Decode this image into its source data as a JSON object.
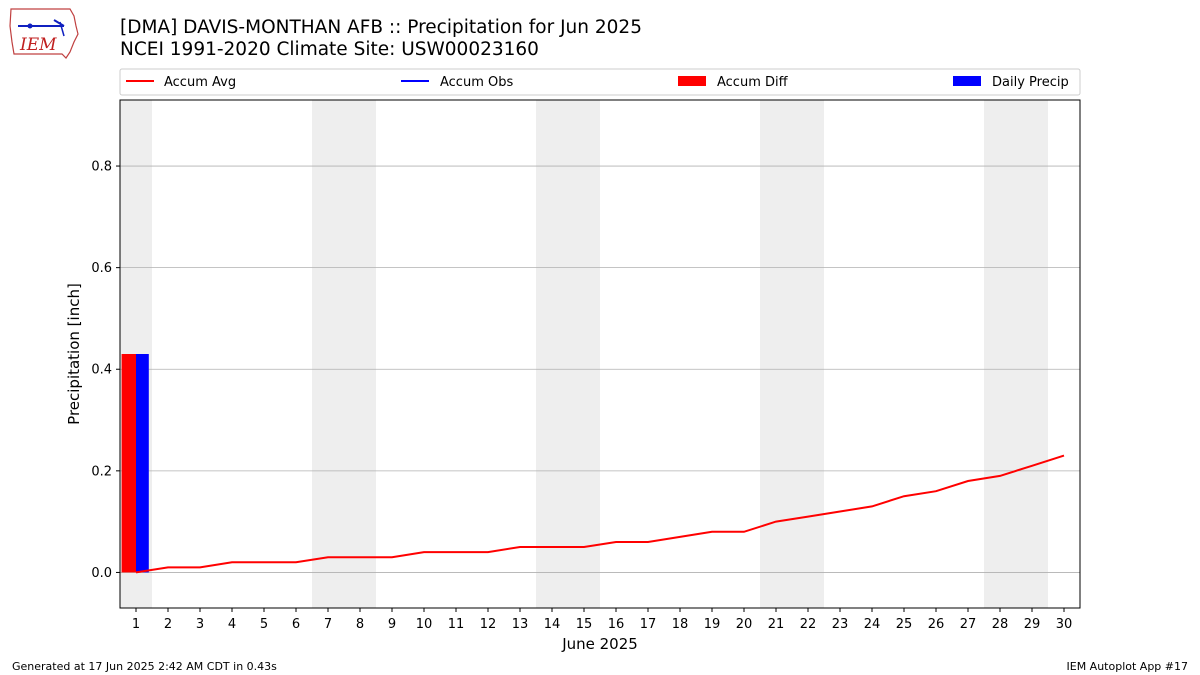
{
  "header": {
    "title_line1": "[DMA] DAVIS-MONTHAN AFB :: Precipitation for Jun 2025",
    "title_line2": "NCEI 1991-2020 Climate Site: USW00023160"
  },
  "logo": {
    "text": "IEM"
  },
  "footer": {
    "left": "Generated at 17 Jun 2025 2:42 AM CDT in 0.43s",
    "right": "IEM Autoplot App #17"
  },
  "colors": {
    "accum_avg": "#ff0000",
    "accum_obs": "#0000ff",
    "accum_diff": "#ff0000",
    "daily_precip": "#0000ff",
    "weekend_band": "#eeeeee",
    "grid": "#b0b0b0"
  },
  "chart_data": {
    "type": "bar",
    "xlabel": "June 2025",
    "ylabel": "Precipitation [inch]",
    "x": [
      1,
      2,
      3,
      4,
      5,
      6,
      7,
      8,
      9,
      10,
      11,
      12,
      13,
      14,
      15,
      16,
      17,
      18,
      19,
      20,
      21,
      22,
      23,
      24,
      25,
      26,
      27,
      28,
      29,
      30
    ],
    "xlim": [
      0.5,
      30.5
    ],
    "ylim": [
      -0.07,
      0.93
    ],
    "yticks": [
      0.0,
      0.2,
      0.4,
      0.6,
      0.8
    ],
    "ytick_labels": [
      "0.0",
      "0.2",
      "0.4",
      "0.6",
      "0.8"
    ],
    "grid": "y",
    "legend": {
      "placement": "top",
      "entries": [
        "Accum Avg",
        "Accum Obs",
        "Accum Diff",
        "Daily Precip"
      ]
    },
    "weekend_days": [
      1,
      7,
      8,
      14,
      15,
      21,
      22,
      28,
      29
    ],
    "series": [
      {
        "name": "Accum Avg",
        "type": "line",
        "values": [
          0.0,
          0.01,
          0.01,
          0.02,
          0.02,
          0.02,
          0.03,
          0.03,
          0.03,
          0.04,
          0.04,
          0.04,
          0.05,
          0.05,
          0.05,
          0.06,
          0.06,
          0.07,
          0.08,
          0.08,
          0.1,
          0.11,
          0.12,
          0.13,
          0.15,
          0.16,
          0.18,
          0.19,
          0.21,
          0.23
        ]
      },
      {
        "name": "Accum Diff",
        "type": "bar",
        "x": [
          1
        ],
        "values": [
          0.43
        ]
      },
      {
        "name": "Daily Precip",
        "type": "bar",
        "x": [
          1
        ],
        "values": [
          0.43
        ]
      }
    ]
  }
}
